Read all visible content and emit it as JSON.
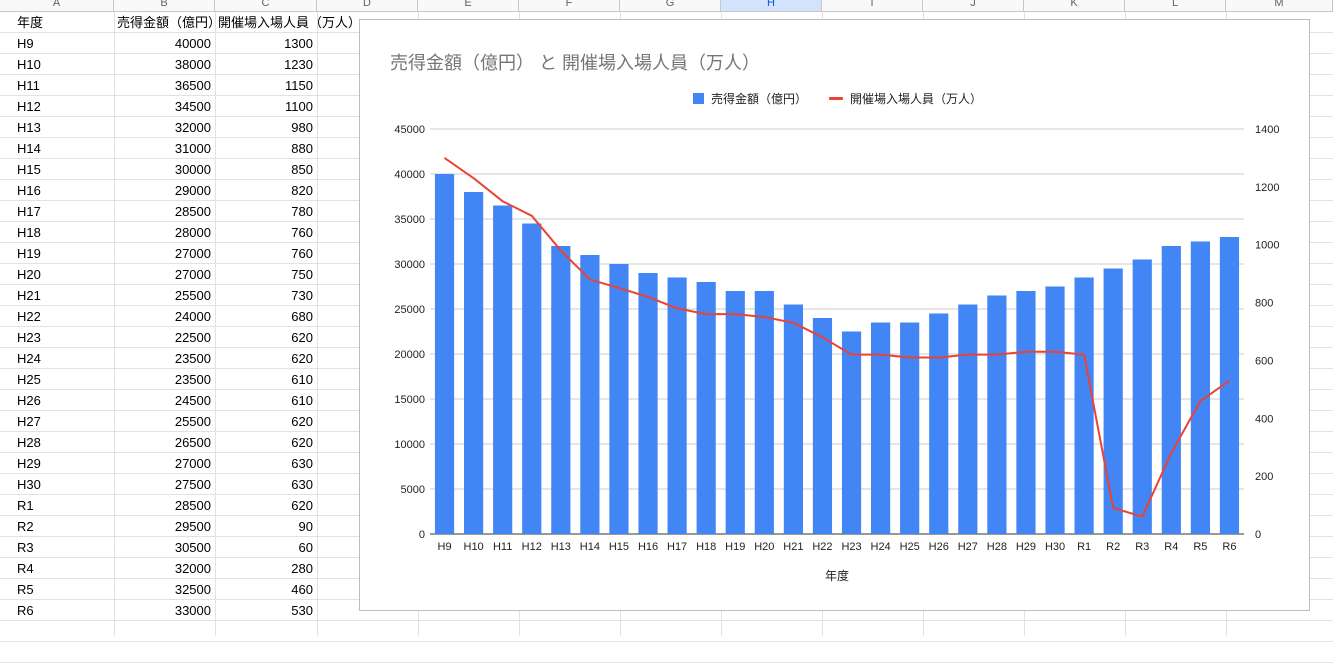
{
  "sheet": {
    "columns": [
      "A",
      "B",
      "C",
      "D",
      "E",
      "F",
      "G",
      "H",
      "I",
      "J",
      "K",
      "L",
      "M"
    ],
    "selected_column": "H",
    "headers": [
      "年度",
      "売得金額（億円）",
      "開催場入場人員（万人）"
    ],
    "rows": [
      [
        "H9",
        "40000",
        "1300"
      ],
      [
        "H10",
        "38000",
        "1230"
      ],
      [
        "H11",
        "36500",
        "1150"
      ],
      [
        "H12",
        "34500",
        "1100"
      ],
      [
        "H13",
        "32000",
        "980"
      ],
      [
        "H14",
        "31000",
        "880"
      ],
      [
        "H15",
        "30000",
        "850"
      ],
      [
        "H16",
        "29000",
        "820"
      ],
      [
        "H17",
        "28500",
        "780"
      ],
      [
        "H18",
        "28000",
        "760"
      ],
      [
        "H19",
        "27000",
        "760"
      ],
      [
        "H20",
        "27000",
        "750"
      ],
      [
        "H21",
        "25500",
        "730"
      ],
      [
        "H22",
        "24000",
        "680"
      ],
      [
        "H23",
        "22500",
        "620"
      ],
      [
        "H24",
        "23500",
        "620"
      ],
      [
        "H25",
        "23500",
        "610"
      ],
      [
        "H26",
        "24500",
        "610"
      ],
      [
        "H27",
        "25500",
        "620"
      ],
      [
        "H28",
        "26500",
        "620"
      ],
      [
        "H29",
        "27000",
        "630"
      ],
      [
        "H30",
        "27500",
        "630"
      ],
      [
        "R1",
        "28500",
        "620"
      ],
      [
        "R2",
        "29500",
        "90"
      ],
      [
        "R3",
        "30500",
        "60"
      ],
      [
        "R4",
        "32000",
        "280"
      ],
      [
        "R5",
        "32500",
        "460"
      ],
      [
        "R6",
        "33000",
        "530"
      ]
    ]
  },
  "chart_data": {
    "type": "bar+line",
    "title": "売得金額（億円） と 開催場入場人員（万人）",
    "xlabel": "年度",
    "categories": [
      "H9",
      "H10",
      "H11",
      "H12",
      "H13",
      "H14",
      "H15",
      "H16",
      "H17",
      "H18",
      "H19",
      "H20",
      "H21",
      "H22",
      "H23",
      "H24",
      "H25",
      "H26",
      "H27",
      "H28",
      "H29",
      "H30",
      "R1",
      "R2",
      "R3",
      "R4",
      "R5",
      "R6"
    ],
    "series": [
      {
        "name": "売得金額（億円）",
        "type": "bar",
        "axis": "left",
        "color": "#4285f4",
        "values": [
          40000,
          38000,
          36500,
          34500,
          32000,
          31000,
          30000,
          29000,
          28500,
          28000,
          27000,
          27000,
          25500,
          24000,
          22500,
          23500,
          23500,
          24500,
          25500,
          26500,
          27000,
          27500,
          28500,
          29500,
          30500,
          32000,
          32500,
          33000
        ]
      },
      {
        "name": "開催場入場人員（万人）",
        "type": "line",
        "axis": "right",
        "color": "#ea4335",
        "values": [
          1300,
          1230,
          1150,
          1100,
          980,
          880,
          850,
          820,
          780,
          760,
          760,
          750,
          730,
          680,
          620,
          620,
          610,
          610,
          620,
          620,
          630,
          630,
          620,
          90,
          60,
          280,
          460,
          530
        ]
      }
    ],
    "left_axis": {
      "min": 0,
      "max": 45000,
      "ticks": [
        "0",
        "5000",
        "10000",
        "15000",
        "20000",
        "25000",
        "30000",
        "35000",
        "40000",
        "45000"
      ]
    },
    "right_axis": {
      "min": 0,
      "max": 1400,
      "ticks": [
        "0",
        "200",
        "400",
        "600",
        "800",
        "1000",
        "1200",
        "1400"
      ]
    },
    "legend_position": "top",
    "grid": true
  }
}
